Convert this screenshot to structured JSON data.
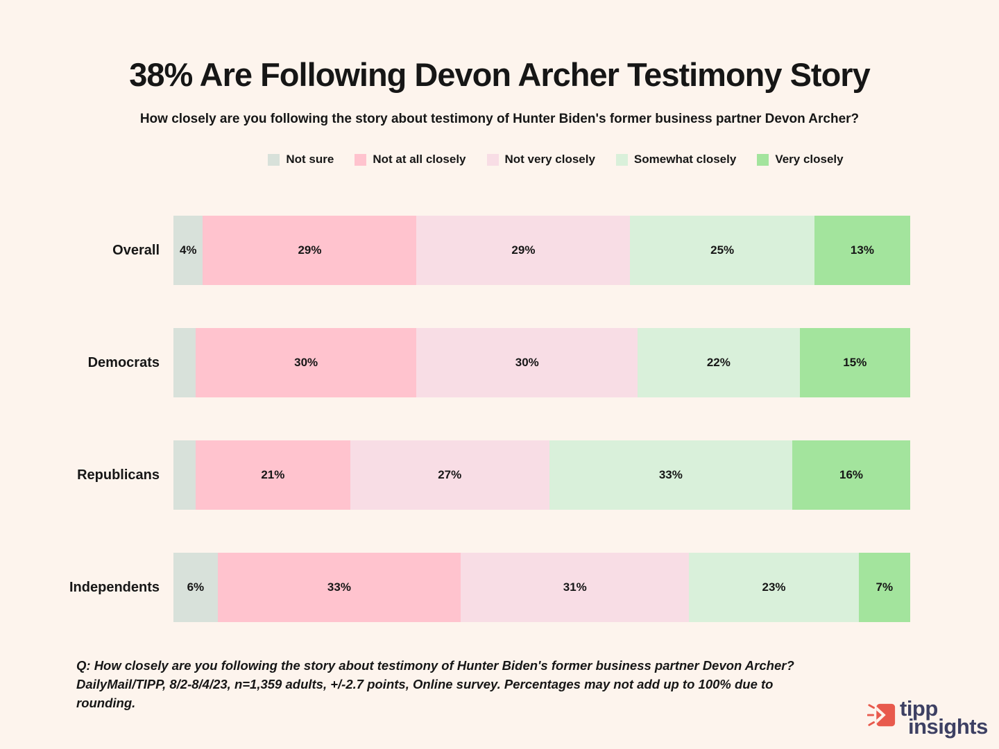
{
  "theme": {
    "background": "#fdf4ed",
    "text": "#161616",
    "logo_red": "#e85a4d",
    "logo_navy": "#3d4063"
  },
  "header": {
    "title": "38% Are Following Devon Archer Testimony Story",
    "subtitle": "How closely are you following the story about testimony of Hunter Biden's former business partner Devon Archer?"
  },
  "chart_data": {
    "type": "bar",
    "orientation": "horizontal",
    "stacked": true,
    "title": "38% Are Following Devon Archer Testimony Story",
    "categories": [
      "Overall",
      "Democrats",
      "Republicans",
      "Independents"
    ],
    "series": [
      {
        "name": "Not sure",
        "color": "#d8e1da",
        "values": [
          4,
          3,
          3,
          6
        ]
      },
      {
        "name": "Not at all closely",
        "color": "#ffc3ce",
        "values": [
          29,
          30,
          21,
          33
        ]
      },
      {
        "name": "Not very closely",
        "color": "#f8dde5",
        "values": [
          29,
          30,
          27,
          31
        ]
      },
      {
        "name": "Somewhat closely",
        "color": "#d9f0da",
        "values": [
          25,
          22,
          33,
          23
        ]
      },
      {
        "name": "Very closely",
        "color": "#a3e49d",
        "values": [
          13,
          15,
          16,
          7
        ]
      }
    ],
    "value_suffix": "%",
    "label_min_value": 4,
    "xlim": [
      0,
      100
    ],
    "legend_position": "top",
    "grid": false
  },
  "footer": {
    "lines": [
      "Q: How closely are you following the story about testimony of Hunter Biden's former business partner Devon Archer?",
      "DailyMail/TIPP, 8/2-8/4/23, n=1,359 adults, +/-2.7 points, Online survey. Percentages may not add up to 100% due to",
      "rounding."
    ]
  },
  "logo": {
    "line1": "tipp",
    "line2": "insights",
    "icon": "tipp-arrow-icon"
  }
}
